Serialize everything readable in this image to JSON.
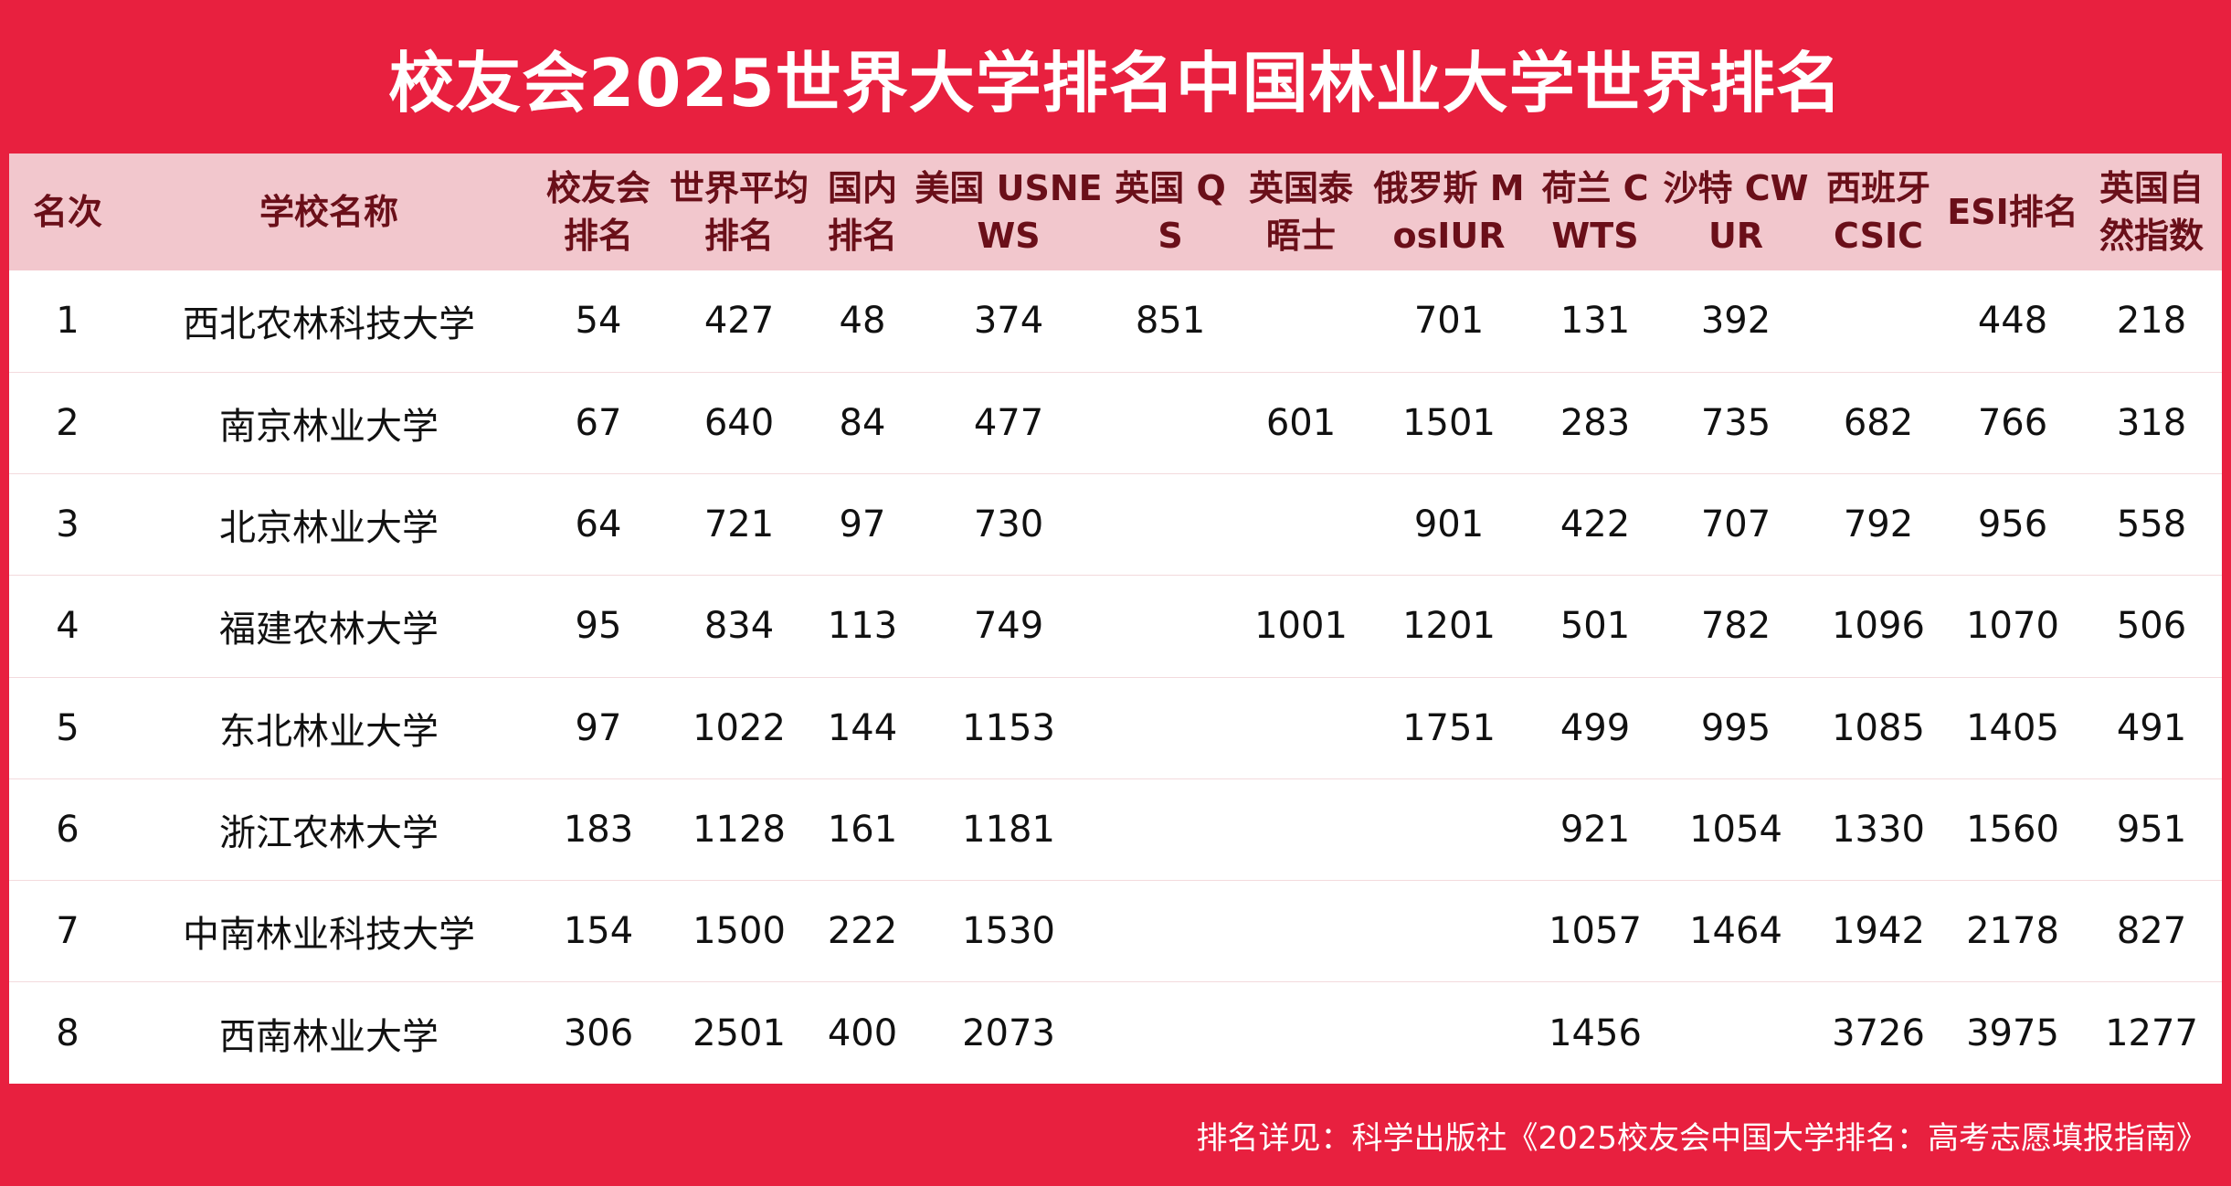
{
  "title": "校友会2025世界大学排名中国林业大学世界排名",
  "headers": [
    "名次",
    "学校名称",
    "校友会排名",
    "世界平均排名",
    "国内排名",
    "美国 USNEWS",
    "英国 QS",
    "英国泰晤士",
    "俄罗斯 MosIUR",
    "荷兰 CWTS",
    "沙特 CWUR",
    "西班牙 CSIC",
    "ESI排名",
    "英国自然指数"
  ],
  "rows": [
    [
      "1",
      "西北农林科技大学",
      "54",
      "427",
      "48",
      "374",
      "851",
      "",
      "701",
      "131",
      "392",
      "",
      "448",
      "218"
    ],
    [
      "2",
      "南京林业大学",
      "67",
      "640",
      "84",
      "477",
      "",
      "601",
      "1501",
      "283",
      "735",
      "682",
      "766",
      "318"
    ],
    [
      "3",
      "北京林业大学",
      "64",
      "721",
      "97",
      "730",
      "",
      "",
      "901",
      "422",
      "707",
      "792",
      "956",
      "558"
    ],
    [
      "4",
      "福建农林大学",
      "95",
      "834",
      "113",
      "749",
      "",
      "1001",
      "1201",
      "501",
      "782",
      "1096",
      "1070",
      "506"
    ],
    [
      "5",
      "东北林业大学",
      "97",
      "1022",
      "144",
      "1153",
      "",
      "",
      "1751",
      "499",
      "995",
      "1085",
      "1405",
      "491"
    ],
    [
      "6",
      "浙江农林大学",
      "183",
      "1128",
      "161",
      "1181",
      "",
      "",
      "",
      "921",
      "1054",
      "1330",
      "1560",
      "951"
    ],
    [
      "7",
      "中南林业科技大学",
      "154",
      "1500",
      "222",
      "1530",
      "",
      "",
      "",
      "1057",
      "1464",
      "1942",
      "2178",
      "827"
    ],
    [
      "8",
      "西南林业大学",
      "306",
      "2501",
      "400",
      "2073",
      "",
      "",
      "",
      "1456",
      "",
      "3726",
      "3975",
      "1277"
    ]
  ],
  "footer": "排名详见：科学出版社《2025校友会中国大学排名：高考志愿填报指南》",
  "colors": {
    "banner": "#e8203f",
    "header_bg": "#f2c7cd",
    "header_text": "#6a0f19",
    "body_text": "#111111"
  }
}
